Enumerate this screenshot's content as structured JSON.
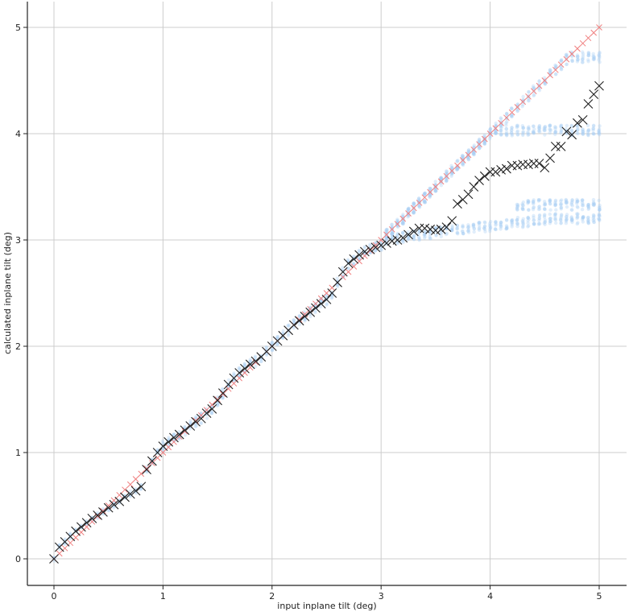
{
  "chart_data": {
    "type": "scatter",
    "title": "",
    "xlabel": "input inplane tilt (deg)",
    "ylabel": "calculated inplane tilt (deg)",
    "xlim": [
      -0.25,
      5.25
    ],
    "ylim": [
      -0.25,
      5.25
    ],
    "xticks": [
      0,
      1,
      2,
      3,
      4,
      5
    ],
    "yticks": [
      0,
      1,
      2,
      3,
      4,
      5
    ],
    "grid": true,
    "colors": {
      "ideal": "#f08080",
      "mean": "#222222",
      "scatter": "#a9cdf3"
    },
    "series": [
      {
        "marker": "small x",
        "color": "#f08080",
        "x": [
          0,
          0.05,
          0.1,
          0.15,
          0.2,
          0.25,
          0.3,
          0.35,
          0.4,
          0.45,
          0.5,
          0.55,
          0.6,
          0.65,
          0.7,
          0.75,
          0.8,
          0.85,
          0.9,
          0.95,
          1,
          1.05,
          1.1,
          1.15,
          1.2,
          1.25,
          1.3,
          1.35,
          1.4,
          1.45,
          1.5,
          1.55,
          1.6,
          1.65,
          1.7,
          1.75,
          1.8,
          1.85,
          1.9,
          1.95,
          2,
          2.05,
          2.1,
          2.15,
          2.2,
          2.25,
          2.3,
          2.35,
          2.4,
          2.45,
          2.5,
          2.55,
          2.6,
          2.65,
          2.7,
          2.75,
          2.8,
          2.85,
          2.9,
          2.95,
          3,
          3.05,
          3.1,
          3.15,
          3.2,
          3.25,
          3.3,
          3.35,
          3.4,
          3.45,
          3.5,
          3.55,
          3.6,
          3.65,
          3.7,
          3.75,
          3.8,
          3.85,
          3.9,
          3.95,
          4,
          4.05,
          4.1,
          4.15,
          4.2,
          4.25,
          4.3,
          4.35,
          4.4,
          4.45,
          4.5,
          4.55,
          4.6,
          4.65,
          4.7,
          4.75,
          4.8,
          4.85,
          4.9,
          4.95,
          5
        ],
        "y": [
          0,
          0.05,
          0.1,
          0.15,
          0.2,
          0.25,
          0.3,
          0.35,
          0.4,
          0.45,
          0.5,
          0.55,
          0.6,
          0.65,
          0.7,
          0.75,
          0.8,
          0.85,
          0.9,
          0.95,
          1,
          1.05,
          1.1,
          1.15,
          1.2,
          1.25,
          1.3,
          1.35,
          1.4,
          1.45,
          1.5,
          1.55,
          1.6,
          1.65,
          1.7,
          1.75,
          1.8,
          1.85,
          1.9,
          1.95,
          2,
          2.05,
          2.1,
          2.15,
          2.2,
          2.25,
          2.3,
          2.35,
          2.4,
          2.45,
          2.5,
          2.55,
          2.6,
          2.65,
          2.7,
          2.75,
          2.8,
          2.85,
          2.9,
          2.95,
          3,
          3.05,
          3.1,
          3.15,
          3.2,
          3.25,
          3.3,
          3.35,
          3.4,
          3.45,
          3.5,
          3.55,
          3.6,
          3.65,
          3.7,
          3.75,
          3.8,
          3.85,
          3.9,
          3.95,
          4,
          4.05,
          4.1,
          4.15,
          4.2,
          4.25,
          4.3,
          4.35,
          4.4,
          4.45,
          4.5,
          4.55,
          4.6,
          4.65,
          4.7,
          4.75,
          4.8,
          4.85,
          4.9,
          4.95,
          5
        ]
      },
      {
        "marker": "large x",
        "color": "#222222",
        "x": [
          0,
          0.05,
          0.1,
          0.15,
          0.2,
          0.25,
          0.3,
          0.35,
          0.4,
          0.45,
          0.5,
          0.55,
          0.6,
          0.65,
          0.7,
          0.75,
          0.8,
          0.85,
          0.9,
          0.95,
          1,
          1.05,
          1.1,
          1.15,
          1.2,
          1.25,
          1.3,
          1.35,
          1.4,
          1.45,
          1.5,
          1.55,
          1.6,
          1.65,
          1.7,
          1.75,
          1.8,
          1.85,
          1.9,
          1.95,
          2,
          2.05,
          2.1,
          2.15,
          2.2,
          2.25,
          2.3,
          2.35,
          2.4,
          2.45,
          2.5,
          2.55,
          2.6,
          2.65,
          2.7,
          2.75,
          2.8,
          2.85,
          2.9,
          2.95,
          3,
          3.05,
          3.1,
          3.15,
          3.2,
          3.25,
          3.3,
          3.35,
          3.4,
          3.45,
          3.5,
          3.55,
          3.6,
          3.65,
          3.7,
          3.75,
          3.8,
          3.85,
          3.9,
          3.95,
          4,
          4.05,
          4.1,
          4.15,
          4.2,
          4.25,
          4.3,
          4.35,
          4.4,
          4.45,
          4.5,
          4.55,
          4.6,
          4.65,
          4.7,
          4.75,
          4.8,
          4.85,
          4.9,
          4.95,
          5
        ],
        "y": [
          0,
          0.11,
          0.16,
          0.21,
          0.26,
          0.3,
          0.34,
          0.38,
          0.41,
          0.44,
          0.48,
          0.51,
          0.54,
          0.58,
          0.61,
          0.64,
          0.68,
          0.84,
          0.92,
          1.0,
          1.06,
          1.1,
          1.14,
          1.17,
          1.21,
          1.25,
          1.29,
          1.32,
          1.37,
          1.41,
          1.49,
          1.56,
          1.64,
          1.7,
          1.75,
          1.79,
          1.83,
          1.86,
          1.9,
          1.95,
          2.0,
          2.05,
          2.1,
          2.15,
          2.2,
          2.24,
          2.28,
          2.32,
          2.36,
          2.4,
          2.44,
          2.5,
          2.6,
          2.7,
          2.78,
          2.82,
          2.86,
          2.89,
          2.91,
          2.93,
          2.95,
          2.97,
          2.99,
          3.0,
          3.02,
          3.05,
          3.08,
          3.11,
          3.11,
          3.1,
          3.09,
          3.1,
          3.12,
          3.18,
          3.34,
          3.38,
          3.43,
          3.5,
          3.56,
          3.6,
          3.64,
          3.64,
          3.66,
          3.67,
          3.7,
          3.7,
          3.71,
          3.71,
          3.72,
          3.72,
          3.68,
          3.77,
          3.88,
          3.88,
          4.02,
          3.99,
          4.1,
          4.13,
          4.28,
          4.37,
          4.45
        ]
      }
    ]
  }
}
